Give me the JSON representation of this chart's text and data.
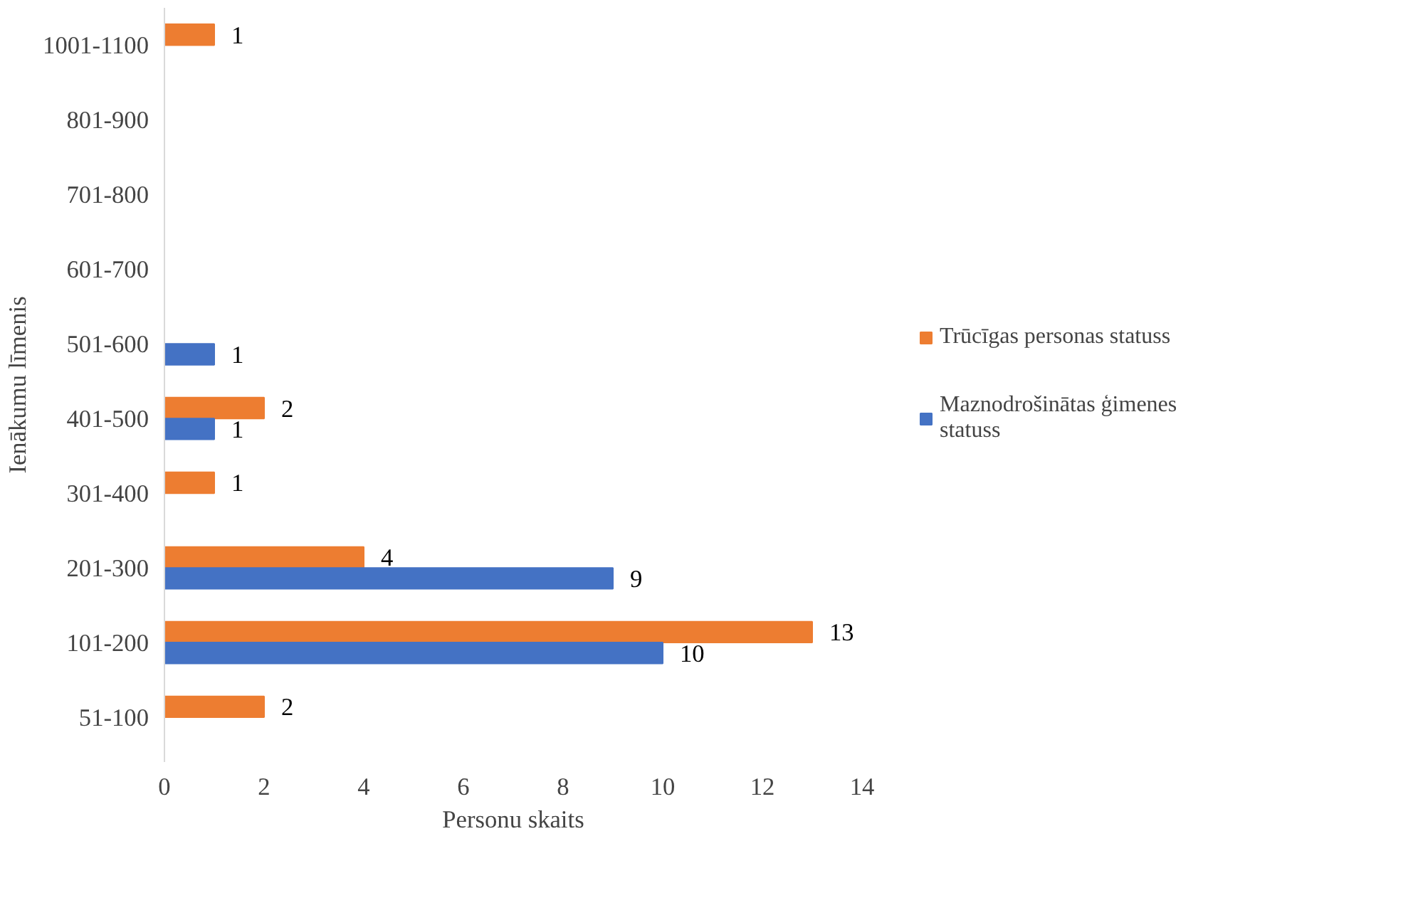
{
  "chart_data": {
    "type": "bar",
    "orientation": "horizontal",
    "xlabel": "Personu skaits",
    "ylabel": "Ienākumu līmenis",
    "categories": [
      "1001-1100",
      "801-900",
      "701-800",
      "601-700",
      "501-600",
      "401-500",
      "301-400",
      "201-300",
      "101-200",
      "51-100"
    ],
    "series": [
      {
        "name": "Trūcīgas personas statuss",
        "color": "#ed7d31",
        "values": [
          1,
          null,
          null,
          null,
          null,
          2,
          1,
          4,
          13,
          2
        ]
      },
      {
        "name": "Maznodrošinātas ģimenes statuss",
        "color": "#4472c4",
        "values": [
          null,
          null,
          null,
          null,
          1,
          1,
          null,
          9,
          10,
          null
        ]
      }
    ],
    "xlim": [
      0,
      14
    ],
    "xticks": [
      0,
      2,
      4,
      6,
      8,
      10,
      12,
      14
    ],
    "grid": false,
    "legend": "right",
    "data_labels": true
  }
}
